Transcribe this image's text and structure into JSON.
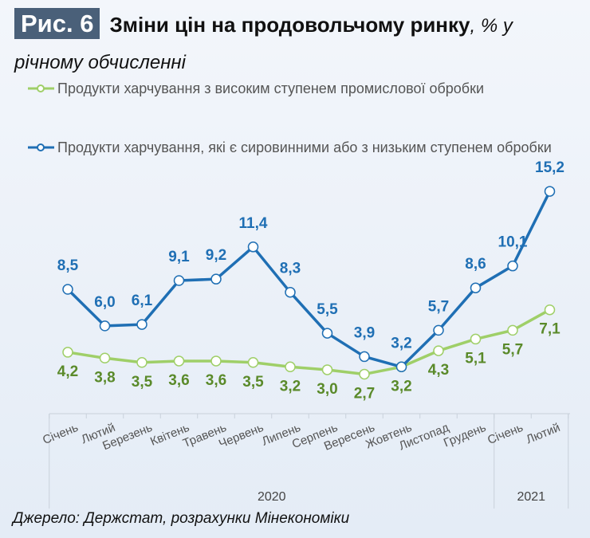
{
  "chart_data": {
    "type": "line",
    "figure_label": "Рис. 6",
    "title": "Зміни цін на продовольчому ринку",
    "subtitle": ", % у річному обчисленні",
    "categories": [
      "Січень",
      "Лютий",
      "Березень",
      "Квітень",
      "Травень",
      "Червень",
      "Липень",
      "Серпень",
      "Вересень",
      "Жовтень",
      "Листопад",
      "Грудень",
      "Січень",
      "Лютий"
    ],
    "years": [
      "2020",
      "2020",
      "2020",
      "2020",
      "2020",
      "2020",
      "2020",
      "2020",
      "2020",
      "2020",
      "2020",
      "2020",
      "2021",
      "2021"
    ],
    "series": [
      {
        "name": "Продукти харчування з високим ступенем промислової обробки",
        "color": "#9fcf68",
        "label_color": "#5a8a2a",
        "label_position": "below",
        "values": [
          4.2,
          3.8,
          3.5,
          3.6,
          3.6,
          3.5,
          3.2,
          3.0,
          2.7,
          3.2,
          4.3,
          5.1,
          5.7,
          7.1
        ],
        "value_labels": [
          "4,2",
          "3,8",
          "3,5",
          "3,6",
          "3,6",
          "3,5",
          "3,2",
          "3,0",
          "2,7",
          "3,2",
          "4,3",
          "5,1",
          "5,7",
          "7,1"
        ]
      },
      {
        "name": "Продукти харчування, які є сировинними або з низьким ступенем обробки",
        "color": "#1f6fb4",
        "label_color": "#1f6fb4",
        "label_position": "above",
        "values": [
          8.5,
          6.0,
          6.1,
          9.1,
          9.2,
          11.4,
          8.3,
          5.5,
          3.9,
          3.2,
          5.7,
          8.6,
          10.1,
          15.2
        ],
        "value_labels": [
          "8,5",
          "6,0",
          "6,1",
          "9,1",
          "9,2",
          "11,4",
          "8,3",
          "5,5",
          "3,9",
          "3,2",
          "5,7",
          "8,6",
          "10,1",
          "15,2"
        ]
      }
    ],
    "source": "Джерело: Держстат, розрахунки Мінекономіки"
  }
}
